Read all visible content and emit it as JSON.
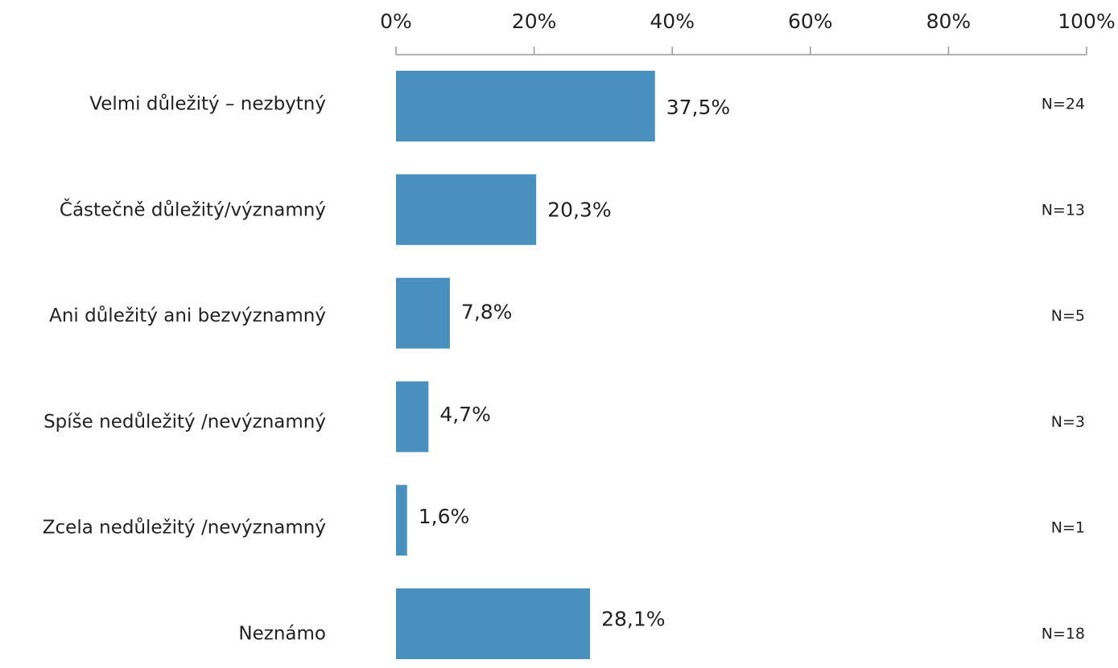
{
  "chart_data": {
    "type": "barh",
    "categories": [
      "Velmi důležitý – nezbytný",
      "Částečně důležitý/významný",
      "Ani důležitý ani bezvýznamný",
      "Spíše nedůležitý /nevýznamný",
      "Zcela nedůležitý /nevýznamný",
      "Neznámo"
    ],
    "values": [
      37.5,
      20.3,
      7.8,
      4.7,
      1.6,
      28.1
    ],
    "value_labels": [
      "37,5%",
      "20,3%",
      "7,8%",
      "4,7%",
      "1,6%",
      "28,1%"
    ],
    "annotations": [
      "N=24",
      "N=13",
      "N=5",
      "N=3",
      "N=1",
      "N=18"
    ],
    "color": "#4a90bf",
    "xlim": [
      0,
      100
    ],
    "xticks": [
      {
        "value": 0,
        "label": "0%"
      },
      {
        "value": 20,
        "label": "20%"
      },
      {
        "value": 40,
        "label": "40%"
      },
      {
        "value": 60,
        "label": "60%"
      },
      {
        "value": 80,
        "label": "80%"
      },
      {
        "value": 100,
        "label": "100%"
      }
    ],
    "grid": false
  }
}
